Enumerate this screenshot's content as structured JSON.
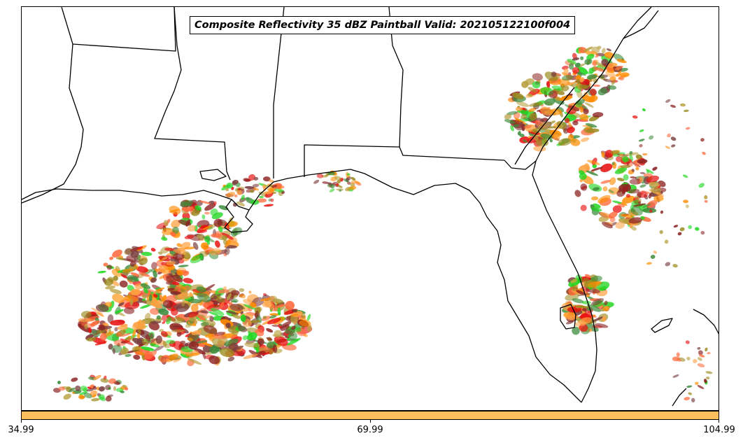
{
  "title": "Composite Reflectivity 35 dBZ Paintball Valid: 202105122100f004",
  "colorbar": {
    "color": "#FDBE5E",
    "ticks": [
      "34.99",
      "69.99",
      "104.99"
    ]
  },
  "member_colors": [
    "#FF8C00",
    "#E81010",
    "#8B2222",
    "#1FD61F",
    "#FF6A3D",
    "#9B8A1F",
    "#3C8C3C",
    "#FFA040",
    "#B8A040",
    "#7A3E3E"
  ]
}
